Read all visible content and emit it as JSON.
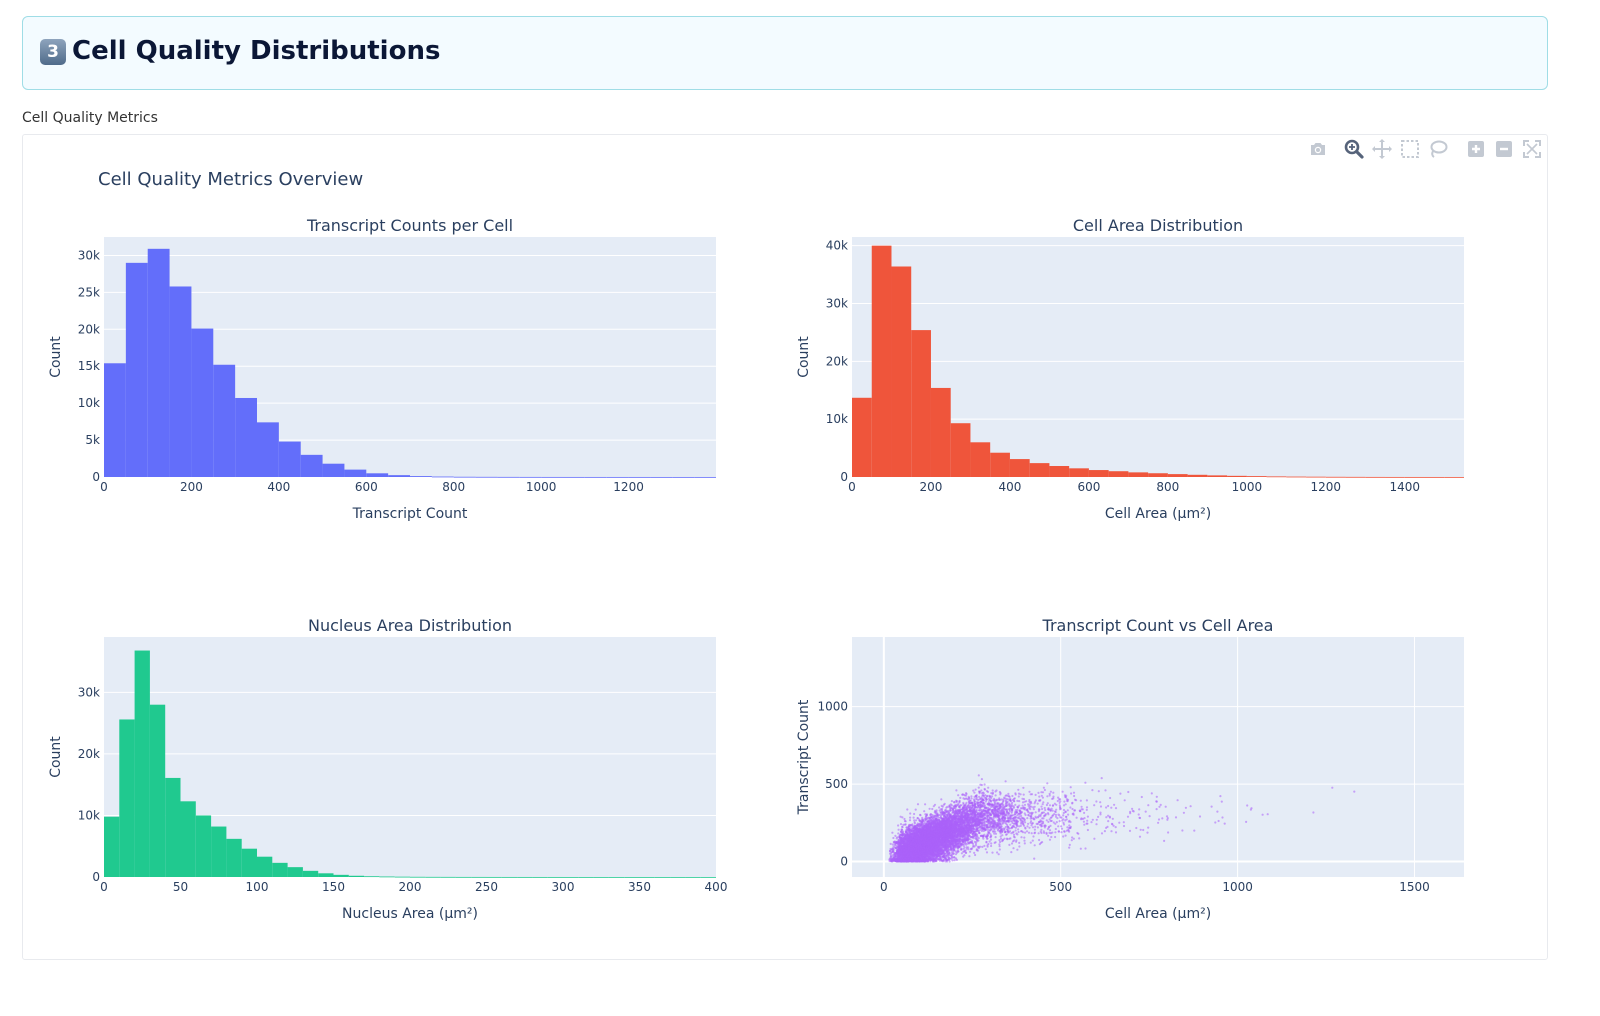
{
  "section": {
    "badge": "3",
    "title": "Cell Quality Distributions"
  },
  "caption": "Cell Quality Metrics",
  "figure_title": "Cell Quality Metrics Overview",
  "modebar": [
    {
      "name": "camera-icon",
      "label": "Download plot as a png"
    },
    {
      "name": "zoom-icon",
      "label": "Zoom"
    },
    {
      "name": "pan-icon",
      "label": "Pan"
    },
    {
      "name": "box-select-icon",
      "label": "Box Select"
    },
    {
      "name": "lasso-select-icon",
      "label": "Lasso Select"
    },
    {
      "name": "zoom-in-icon",
      "label": "Zoom in"
    },
    {
      "name": "zoom-out-icon",
      "label": "Zoom out"
    },
    {
      "name": "autoscale-icon",
      "label": "Reset axes"
    }
  ],
  "colors": {
    "plot_bg": "#e5ecf6",
    "grid": "#ffffff",
    "text": "#2a3f5f",
    "transcripts": "#636efa",
    "cell_area": "#ef553b",
    "nucleus": "#20c98f",
    "scatter": "#ab63fa"
  },
  "chart_data": [
    {
      "type": "bar",
      "title": "Transcript Counts per Cell",
      "xlabel": "Transcript Count",
      "ylabel": "Count",
      "xlim": [
        0,
        1400
      ],
      "ylim": [
        0,
        32500
      ],
      "xticks": [
        0,
        200,
        400,
        600,
        800,
        1000,
        1200
      ],
      "xtick_labels": [
        "0",
        "200",
        "400",
        "600",
        "800",
        "1000",
        "1200"
      ],
      "yticks": [
        0,
        5000,
        10000,
        15000,
        20000,
        25000,
        30000
      ],
      "ytick_labels": [
        "0",
        "5k",
        "10k",
        "15k",
        "20k",
        "25k",
        "30k"
      ],
      "bin_start": 0,
      "bin_width": 50,
      "values": [
        15400,
        29000,
        30900,
        25800,
        20100,
        15200,
        10700,
        7400,
        4800,
        3000,
        1800,
        1000,
        500,
        250,
        120,
        60,
        30,
        20,
        12,
        8,
        5,
        4,
        3,
        2,
        2,
        1,
        1,
        1
      ],
      "color": "#636efa"
    },
    {
      "type": "bar",
      "title": "Cell Area Distribution",
      "xlabel": "Cell Area (μm²)",
      "ylabel": "Count",
      "xlim": [
        0,
        1550
      ],
      "ylim": [
        0,
        41500
      ],
      "xticks": [
        0,
        200,
        400,
        600,
        800,
        1000,
        1200,
        1400
      ],
      "xtick_labels": [
        "0",
        "200",
        "400",
        "600",
        "800",
        "1000",
        "1200",
        "1400"
      ],
      "yticks": [
        0,
        10000,
        20000,
        30000,
        40000
      ],
      "ytick_labels": [
        "0",
        "10k",
        "20k",
        "30k",
        "40k"
      ],
      "bin_start": 0,
      "bin_width": 50,
      "values": [
        13700,
        40000,
        36400,
        25400,
        15400,
        9300,
        6000,
        4200,
        3100,
        2400,
        1900,
        1500,
        1200,
        1000,
        800,
        650,
        500,
        380,
        280,
        200,
        150,
        100,
        70,
        50,
        30,
        20,
        10,
        5,
        3,
        2,
        1
      ],
      "color": "#ef553b"
    },
    {
      "type": "bar",
      "title": "Nucleus Area Distribution",
      "xlabel": "Nucleus Area (μm²)",
      "ylabel": "Count",
      "xlim": [
        0,
        400
      ],
      "ylim": [
        0,
        39000
      ],
      "xticks": [
        0,
        50,
        100,
        150,
        200,
        250,
        300,
        350,
        400
      ],
      "xtick_labels": [
        "0",
        "50",
        "100",
        "150",
        "200",
        "250",
        "300",
        "350",
        "400"
      ],
      "yticks": [
        0,
        10000,
        20000,
        30000
      ],
      "ytick_labels": [
        "0",
        "10k",
        "20k",
        "30k"
      ],
      "bin_start": 0,
      "bin_width": 10,
      "values": [
        9800,
        25600,
        36800,
        28000,
        16100,
        12300,
        10000,
        8200,
        6200,
        4600,
        3300,
        2300,
        1600,
        1000,
        600,
        350,
        200,
        120,
        80,
        50,
        30,
        20,
        15,
        10,
        8,
        5,
        4,
        3,
        2,
        2,
        1,
        1,
        1,
        1,
        1,
        1,
        1,
        1,
        1,
        1
      ],
      "color": "#20c98f"
    },
    {
      "type": "scatter",
      "title": "Transcript Count vs Cell Area",
      "xlabel": "Cell Area (μm²)",
      "ylabel": "Transcript Count",
      "xlim": [
        -90,
        1640
      ],
      "ylim": [
        -100,
        1450
      ],
      "xticks": [
        0,
        500,
        1000,
        1500
      ],
      "xtick_labels": [
        "0",
        "500",
        "1000",
        "1500"
      ],
      "yticks": [
        0,
        500,
        1000
      ],
      "ytick_labels": [
        "0",
        "500",
        "1000"
      ],
      "point_count": 9000,
      "color": "#ab63fa"
    }
  ]
}
